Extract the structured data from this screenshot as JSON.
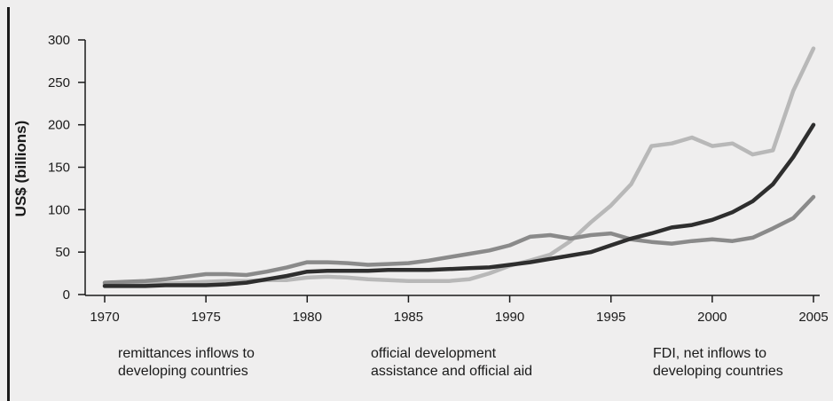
{
  "chart_data": {
    "type": "line",
    "ylabel": "US$ (billions)",
    "xlim": [
      1970,
      2005
    ],
    "ylim": [
      0,
      300
    ],
    "x_ticks": [
      "1970",
      "1975",
      "1980",
      "1985",
      "1990",
      "1995",
      "2000",
      "2005"
    ],
    "y_ticks": [
      "0",
      "50",
      "100",
      "150",
      "200",
      "250",
      "300"
    ],
    "grid": false,
    "x": [
      1970,
      1971,
      1972,
      1973,
      1974,
      1975,
      1976,
      1977,
      1978,
      1979,
      1980,
      1981,
      1982,
      1983,
      1984,
      1985,
      1986,
      1987,
      1988,
      1989,
      1990,
      1991,
      1992,
      1993,
      1994,
      1995,
      1996,
      1997,
      1998,
      1999,
      2000,
      2001,
      2002,
      2003,
      2004,
      2005
    ],
    "series": [
      {
        "name": "remittances inflows to developing countries",
        "color": "#2e2e2e",
        "values": [
          10,
          10,
          10,
          11,
          11,
          11,
          12,
          14,
          18,
          22,
          27,
          28,
          28,
          28,
          29,
          29,
          29,
          30,
          31,
          32,
          35,
          38,
          42,
          46,
          50,
          58,
          66,
          72,
          79,
          82,
          88,
          97,
          110,
          130,
          162,
          200
        ]
      },
      {
        "name": "official development assistance and official aid",
        "color": "#8a8a8a",
        "values": [
          14,
          15,
          16,
          18,
          21,
          24,
          24,
          23,
          27,
          32,
          38,
          38,
          37,
          35,
          36,
          37,
          40,
          44,
          48,
          52,
          58,
          68,
          70,
          66,
          70,
          72,
          65,
          62,
          60,
          63,
          65,
          63,
          67,
          78,
          90,
          115
        ]
      },
      {
        "name": "FDI, net inflows to developing countries",
        "color": "#b8b8b8",
        "values": [
          12,
          13,
          13,
          13,
          14,
          15,
          16,
          16,
          17,
          17,
          20,
          21,
          20,
          18,
          17,
          16,
          16,
          16,
          18,
          25,
          34,
          40,
          47,
          63,
          85,
          105,
          130,
          175,
          178,
          185,
          175,
          178,
          165,
          170,
          240,
          290
        ]
      }
    ],
    "annotations": [
      {
        "line1": "remittances inflows to",
        "line2": "developing countries"
      },
      {
        "line1": "official development",
        "line2": "assistance and official aid"
      },
      {
        "line1": "FDI, net inflows to",
        "line2": "developing countries"
      }
    ]
  }
}
